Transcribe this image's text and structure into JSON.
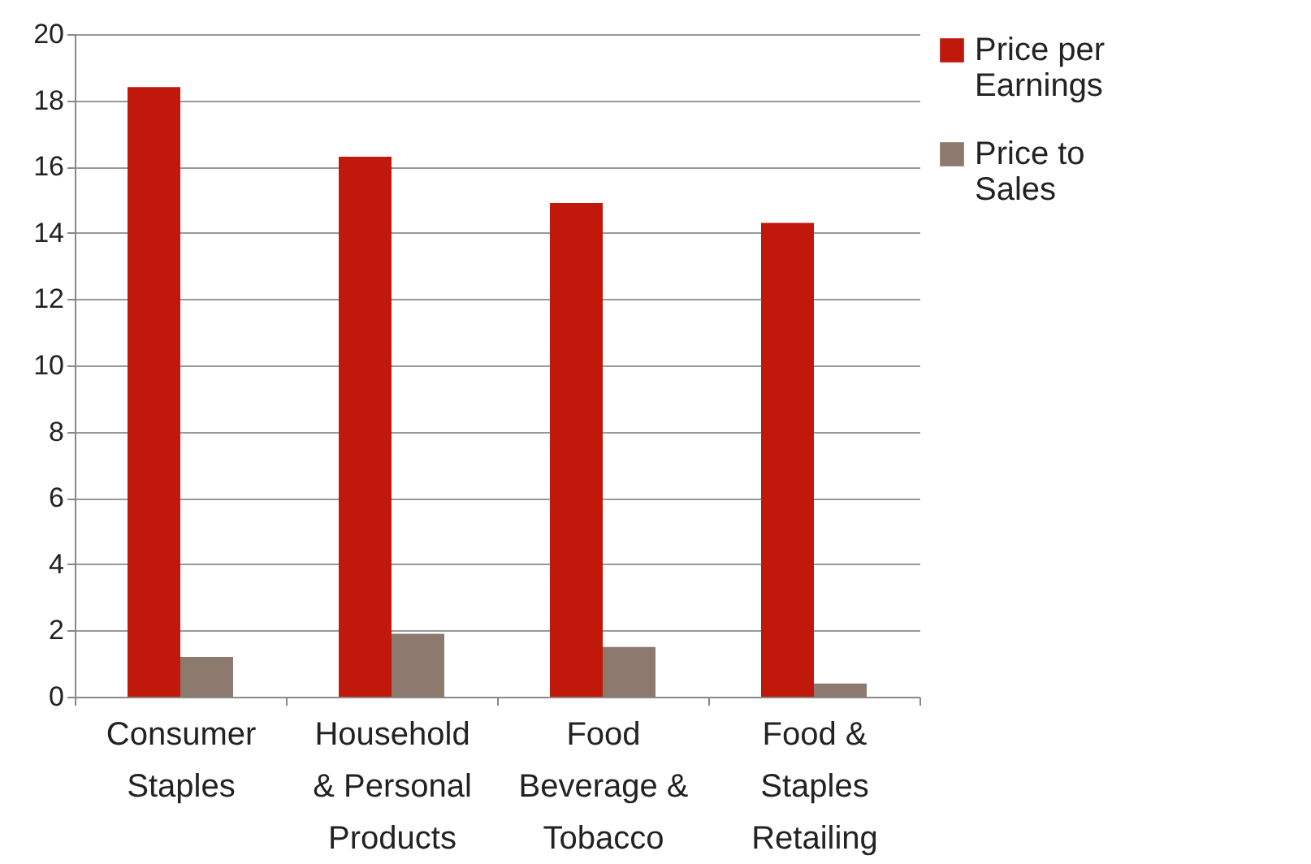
{
  "chart_data": {
    "type": "bar",
    "categories": [
      "Consumer Staples",
      "Household & Personal Products",
      "Food Beverage & Tobacco",
      "Food & Staples Retailing"
    ],
    "series": [
      {
        "name": "Price per Earnings",
        "color": "#c0190b",
        "values": [
          18.4,
          16.3,
          14.9,
          14.3
        ]
      },
      {
        "name": "Price to Sales",
        "color": "#8b7a6d",
        "values": [
          1.2,
          1.9,
          1.5,
          0.4
        ]
      }
    ],
    "ylim": [
      0,
      20
    ],
    "yticks": [
      0,
      2,
      4,
      6,
      8,
      10,
      12,
      14,
      16,
      18,
      20
    ],
    "grid": "y",
    "legend": "right"
  }
}
